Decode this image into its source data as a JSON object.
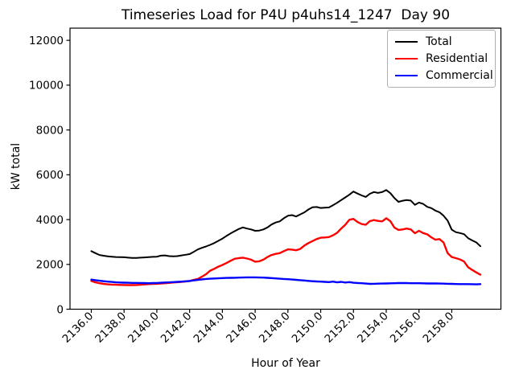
{
  "chart_data": {
    "type": "line",
    "title": "Timeseries Load for P4U p4uhs14_1247  Day 90",
    "xlabel": "Hour of Year",
    "ylabel": "kW total",
    "xlim": [
      2134.7,
      2161.0
    ],
    "ylim": [
      0,
      12544
    ],
    "x_ticks": [
      2136,
      2138,
      2140,
      2142,
      2144,
      2146,
      2148,
      2150,
      2152,
      2154,
      2156,
      2158
    ],
    "x_tick_labels": [
      "2136.0",
      "2138.0",
      "2140.0",
      "2142.0",
      "2144.0",
      "2146.0",
      "2148.0",
      "2150.0",
      "2152.0",
      "2154.0",
      "2156.0",
      "2158.0"
    ],
    "y_ticks": [
      0,
      2000,
      4000,
      6000,
      8000,
      10000,
      12000
    ],
    "y_tick_labels": [
      "0",
      "2000",
      "4000",
      "6000",
      "8000",
      "10000",
      "12000"
    ],
    "grid": false,
    "legend_position": "upper right",
    "x": [
      2136,
      2136.25,
      2136.5,
      2136.75,
      2137,
      2137.25,
      2137.5,
      2137.75,
      2138,
      2138.25,
      2138.5,
      2138.75,
      2139,
      2139.25,
      2139.5,
      2139.75,
      2140,
      2140.25,
      2140.5,
      2140.75,
      2141,
      2141.25,
      2141.5,
      2141.75,
      2142,
      2142.25,
      2142.5,
      2142.75,
      2143,
      2143.25,
      2143.5,
      2143.75,
      2144,
      2144.25,
      2144.5,
      2144.75,
      2145,
      2145.25,
      2145.5,
      2145.75,
      2146,
      2146.25,
      2146.5,
      2146.75,
      2147,
      2147.25,
      2147.5,
      2147.75,
      2148,
      2148.25,
      2148.5,
      2148.75,
      2149,
      2149.25,
      2149.5,
      2149.75,
      2150,
      2150.25,
      2150.5,
      2150.75,
      2151,
      2151.25,
      2151.5,
      2151.75,
      2152,
      2152.25,
      2152.5,
      2152.75,
      2153,
      2153.25,
      2153.5,
      2153.75,
      2154,
      2154.25,
      2154.5,
      2154.75,
      2155,
      2155.25,
      2155.5,
      2155.75,
      2156,
      2156.25,
      2156.5,
      2156.75,
      2157,
      2157.25,
      2157.5,
      2157.75,
      2158,
      2158.25,
      2158.5,
      2158.75,
      2159,
      2159.25,
      2159.5,
      2159.75
    ],
    "series": [
      {
        "name": "Total",
        "color": "#000000",
        "values": [
          2590,
          2500,
          2420,
          2385,
          2360,
          2345,
          2330,
          2325,
          2320,
          2300,
          2285,
          2290,
          2300,
          2310,
          2325,
          2335,
          2345,
          2390,
          2400,
          2370,
          2360,
          2370,
          2400,
          2430,
          2460,
          2560,
          2665,
          2740,
          2800,
          2870,
          2950,
          3050,
          3150,
          3270,
          3380,
          3480,
          3580,
          3650,
          3600,
          3560,
          3500,
          3510,
          3560,
          3650,
          3780,
          3870,
          3920,
          4060,
          4170,
          4200,
          4140,
          4230,
          4320,
          4450,
          4550,
          4560,
          4520,
          4530,
          4540,
          4640,
          4750,
          4870,
          4990,
          5110,
          5250,
          5160,
          5080,
          5010,
          5150,
          5230,
          5190,
          5230,
          5320,
          5180,
          4960,
          4790,
          4840,
          4870,
          4850,
          4660,
          4760,
          4700,
          4570,
          4510,
          4400,
          4330,
          4175,
          3950,
          3550,
          3440,
          3400,
          3350,
          3170,
          3070,
          2980,
          2810
        ]
      },
      {
        "name": "Residential",
        "color": "#ff0000",
        "values": [
          1260,
          1200,
          1160,
          1130,
          1110,
          1100,
          1090,
          1085,
          1080,
          1078,
          1075,
          1082,
          1090,
          1105,
          1120,
          1128,
          1135,
          1148,
          1160,
          1175,
          1190,
          1205,
          1220,
          1240,
          1260,
          1305,
          1350,
          1450,
          1560,
          1720,
          1800,
          1900,
          1975,
          2060,
          2160,
          2250,
          2280,
          2300,
          2260,
          2210,
          2120,
          2140,
          2210,
          2330,
          2420,
          2470,
          2500,
          2590,
          2670,
          2660,
          2630,
          2690,
          2840,
          2950,
          3040,
          3130,
          3190,
          3200,
          3220,
          3300,
          3410,
          3600,
          3770,
          3990,
          4030,
          3890,
          3800,
          3770,
          3930,
          3975,
          3940,
          3920,
          4060,
          3930,
          3640,
          3540,
          3560,
          3600,
          3560,
          3390,
          3500,
          3400,
          3340,
          3210,
          3100,
          3130,
          2980,
          2500,
          2330,
          2280,
          2220,
          2130,
          1870,
          1750,
          1640,
          1540
        ]
      },
      {
        "name": "Commercial",
        "color": "#0000ff",
        "values": [
          1320,
          1295,
          1270,
          1250,
          1230,
          1215,
          1200,
          1192,
          1185,
          1180,
          1175,
          1172,
          1170,
          1165,
          1160,
          1165,
          1170,
          1180,
          1190,
          1200,
          1210,
          1220,
          1230,
          1245,
          1260,
          1285,
          1310,
          1330,
          1350,
          1360,
          1370,
          1380,
          1390,
          1395,
          1400,
          1405,
          1410,
          1415,
          1420,
          1420,
          1420,
          1415,
          1410,
          1400,
          1390,
          1375,
          1360,
          1350,
          1340,
          1325,
          1310,
          1295,
          1280,
          1265,
          1250,
          1240,
          1230,
          1220,
          1210,
          1230,
          1200,
          1220,
          1190,
          1210,
          1180,
          1170,
          1160,
          1145,
          1130,
          1135,
          1140,
          1145,
          1150,
          1155,
          1160,
          1165,
          1170,
          1165,
          1160,
          1160,
          1160,
          1155,
          1150,
          1150,
          1150,
          1145,
          1140,
          1135,
          1130,
          1125,
          1120,
          1120,
          1120,
          1115,
          1110,
          1120
        ]
      }
    ]
  }
}
